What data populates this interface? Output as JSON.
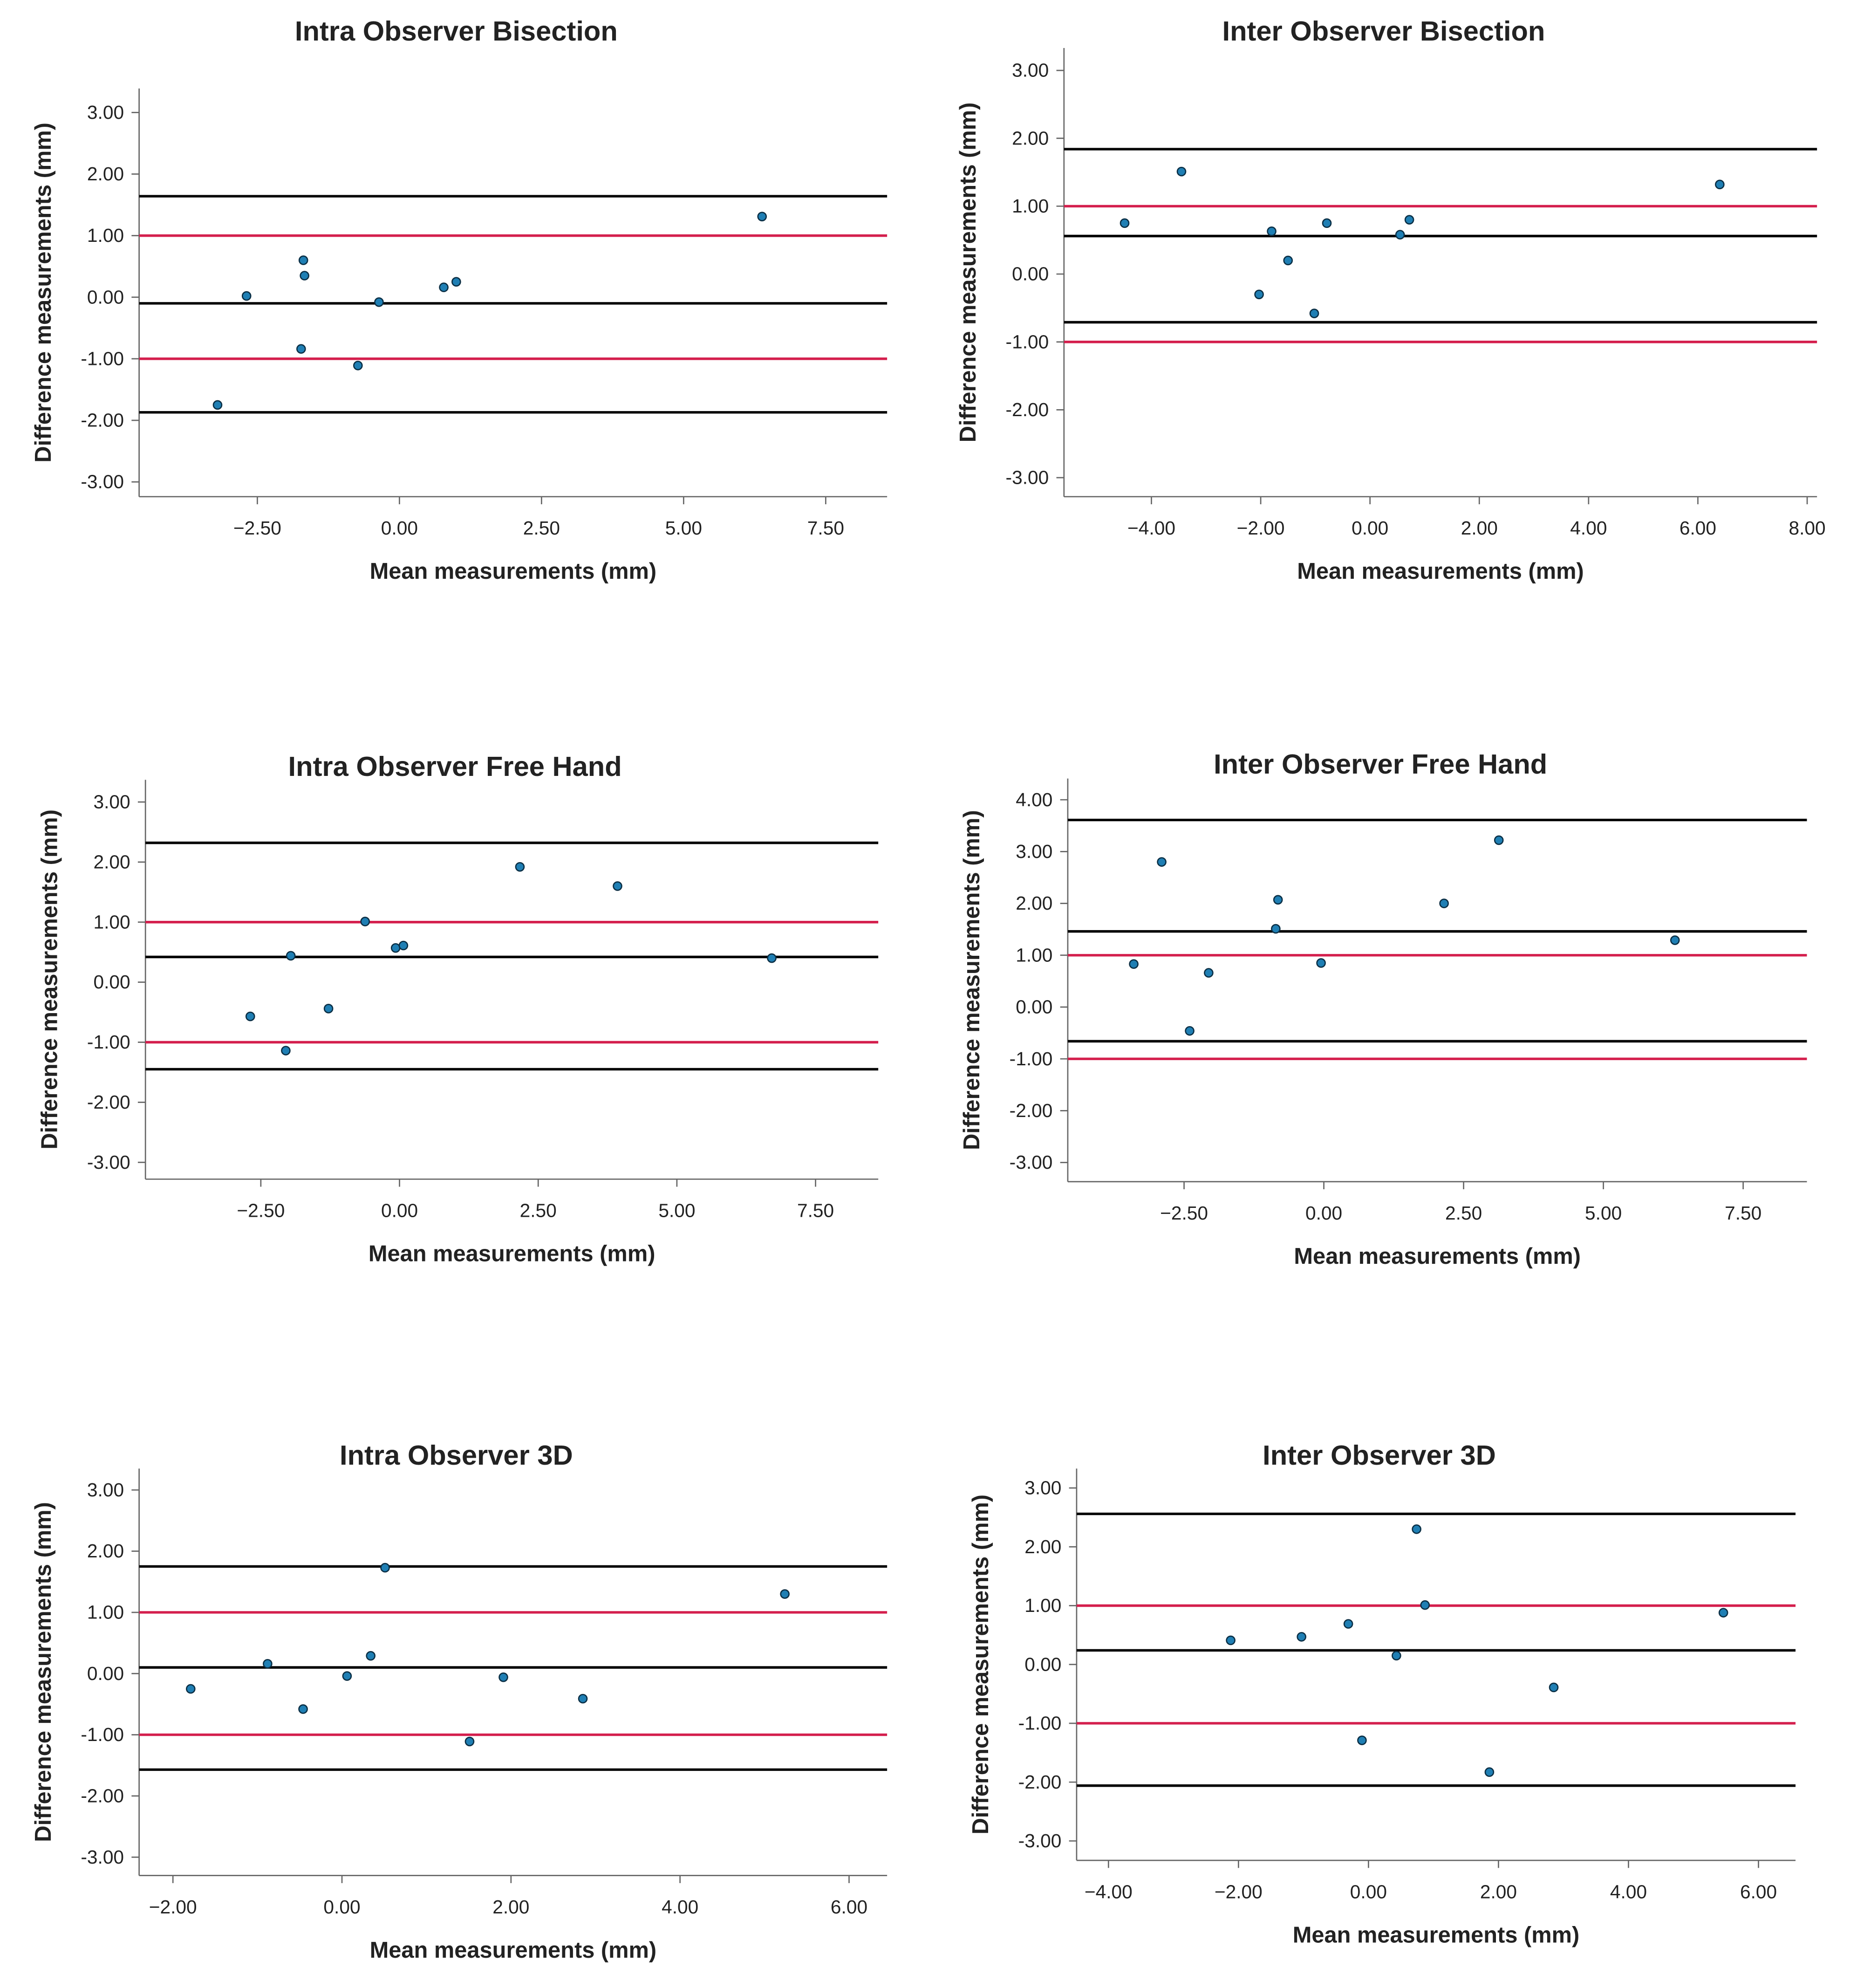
{
  "chart_data": [
    {
      "type": "scatter",
      "title": "Intra Observer Bisection",
      "x_label": "Mean measurements (mm)",
      "y_label": "Difference measurements (mm)",
      "xlim": [
        -4.58,
        8.58
      ],
      "ylim": [
        -3.24,
        3.39
      ],
      "xticks": [
        {
          "value": -2.5,
          "label": "−2.50"
        },
        {
          "value": 0,
          "label": "0.00"
        },
        {
          "value": 2.5,
          "label": "2.50"
        },
        {
          "value": 5,
          "label": "5.00"
        },
        {
          "value": 7.5,
          "label": "7.50"
        }
      ],
      "yticks": [
        {
          "value": 3,
          "label": "3.00"
        },
        {
          "value": 2,
          "label": "2.00"
        },
        {
          "value": 1,
          "label": "1.00"
        },
        {
          "value": 0,
          "label": "0.00"
        },
        {
          "value": -1,
          "label": "-1.00"
        },
        {
          "value": -2,
          "label": "-2.00"
        },
        {
          "value": -3,
          "label": "-3.00"
        }
      ],
      "color": "#1f7fb4",
      "x": [
        6.38,
        -1.69,
        -1.67,
        -2.69,
        -0.36,
        0.78,
        1.0,
        -1.73,
        -0.73,
        -3.2
      ],
      "values": [
        1.31,
        0.6,
        0.35,
        0.02,
        -0.08,
        0.16,
        0.25,
        -0.84,
        -1.11,
        -1.75
      ],
      "reference_lines": [
        {
          "value": 1.64,
          "color": "#000000"
        },
        {
          "value": 1,
          "color": "#d41f4d"
        },
        {
          "value": -0.1,
          "color": "#000000"
        },
        {
          "value": -1,
          "color": "#d41f4d"
        },
        {
          "value": -1.87,
          "color": "#000000"
        }
      ]
    },
    {
      "type": "scatter",
      "title": "Inter Observer Bisection",
      "x_label": "Mean measurements (mm)",
      "y_label": "Difference measurements (mm)",
      "xlim": [
        -5.6,
        8.18
      ],
      "ylim": [
        -3.28,
        3.33
      ],
      "xticks": [
        {
          "value": -4,
          "label": "−4.00"
        },
        {
          "value": -2,
          "label": "−2.00"
        },
        {
          "value": 0,
          "label": "0.00"
        },
        {
          "value": 2,
          "label": "2.00"
        },
        {
          "value": 4,
          "label": "4.00"
        },
        {
          "value": 6,
          "label": "6.00"
        },
        {
          "value": 8,
          "label": "8.00"
        }
      ],
      "yticks": [
        {
          "value": 3,
          "label": "3.00"
        },
        {
          "value": 2,
          "label": "2.00"
        },
        {
          "value": 1,
          "label": "1.00"
        },
        {
          "value": 0,
          "label": "0.00"
        },
        {
          "value": -1,
          "label": "-1.00"
        },
        {
          "value": -2,
          "label": "-2.00"
        },
        {
          "value": -3,
          "label": "-3.00"
        }
      ],
      "color": "#1f7fb4",
      "x": [
        -4.49,
        -3.45,
        -1.8,
        -1.5,
        -2.03,
        -0.79,
        -1.02,
        0.55,
        0.72,
        6.4
      ],
      "values": [
        0.75,
        1.51,
        0.63,
        0.2,
        -0.3,
        0.75,
        -0.58,
        0.58,
        0.8,
        1.32
      ],
      "reference_lines": [
        {
          "value": 1.84,
          "color": "#000000"
        },
        {
          "value": 1,
          "color": "#d41f4d"
        },
        {
          "value": 0.56,
          "color": "#000000"
        },
        {
          "value": -0.71,
          "color": "#000000"
        },
        {
          "value": -1,
          "color": "#d41f4d"
        }
      ]
    },
    {
      "type": "scatter",
      "title": "Intra Observer Free Hand",
      "x_label": "Mean measurements (mm)",
      "y_label": "Difference measurements (mm)",
      "xlim": [
        -4.58,
        8.63
      ],
      "ylim": [
        -3.28,
        3.37
      ],
      "xticks": [
        {
          "value": -2.5,
          "label": "−2.50"
        },
        {
          "value": 0,
          "label": "0.00"
        },
        {
          "value": 2.5,
          "label": "2.50"
        },
        {
          "value": 5,
          "label": "5.00"
        },
        {
          "value": 7.5,
          "label": "7.50"
        }
      ],
      "yticks": [
        {
          "value": 3,
          "label": "3.00"
        },
        {
          "value": 2,
          "label": "2.00"
        },
        {
          "value": 1,
          "label": "1.00"
        },
        {
          "value": 0,
          "label": "0.00"
        },
        {
          "value": -1,
          "label": "-1.00"
        },
        {
          "value": -2,
          "label": "-2.00"
        },
        {
          "value": -3,
          "label": "-3.00"
        }
      ],
      "color": "#1f7fb4",
      "x": [
        2.17,
        3.93,
        -0.62,
        -1.96,
        -0.07,
        0.07,
        6.71,
        -2.69,
        -1.28,
        -2.05
      ],
      "values": [
        1.92,
        1.6,
        1.01,
        0.44,
        0.57,
        0.61,
        0.4,
        -0.57,
        -0.44,
        -1.14
      ],
      "reference_lines": [
        {
          "value": 2.32,
          "color": "#000000"
        },
        {
          "value": 1,
          "color": "#d41f4d"
        },
        {
          "value": 0.42,
          "color": "#000000"
        },
        {
          "value": -1,
          "color": "#d41f4d"
        },
        {
          "value": -1.45,
          "color": "#000000"
        }
      ]
    },
    {
      "type": "scatter",
      "title": "Inter Observer Free Hand",
      "x_label": "Mean measurements (mm)",
      "y_label": "Difference measurements (mm)",
      "xlim": [
        -4.58,
        8.64
      ],
      "ylim": [
        -3.37,
        4.41
      ],
      "xticks": [
        {
          "value": -2.5,
          "label": "−2.50"
        },
        {
          "value": 0,
          "label": "0.00"
        },
        {
          "value": 2.5,
          "label": "2.50"
        },
        {
          "value": 5,
          "label": "5.00"
        },
        {
          "value": 7.5,
          "label": "7.50"
        }
      ],
      "yticks": [
        {
          "value": 4,
          "label": "4.00"
        },
        {
          "value": 3,
          "label": "3.00"
        },
        {
          "value": 2,
          "label": "2.00"
        },
        {
          "value": 1,
          "label": "1.00"
        },
        {
          "value": 0,
          "label": "0.00"
        },
        {
          "value": -1,
          "label": "-1.00"
        },
        {
          "value": -2,
          "label": "-2.00"
        },
        {
          "value": -3,
          "label": "-3.00"
        }
      ],
      "color": "#1f7fb4",
      "x": [
        -2.9,
        3.13,
        -0.82,
        2.15,
        -0.86,
        6.28,
        -3.4,
        -2.06,
        -0.05,
        -2.4
      ],
      "values": [
        2.8,
        3.22,
        2.07,
        2.0,
        1.51,
        1.29,
        0.83,
        0.66,
        0.85,
        -0.46
      ],
      "reference_lines": [
        {
          "value": 3.61,
          "color": "#000000"
        },
        {
          "value": 1.46,
          "color": "#000000"
        },
        {
          "value": 1,
          "color": "#d41f4d"
        },
        {
          "value": -0.66,
          "color": "#000000"
        },
        {
          "value": -1,
          "color": "#d41f4d"
        }
      ]
    },
    {
      "type": "scatter",
      "title": "Intra Observer 3D",
      "x_label": "Mean measurements (mm)",
      "y_label": "Difference measurements (mm)",
      "xlim": [
        -2.4,
        6.45
      ],
      "ylim": [
        -3.3,
        3.35
      ],
      "xticks": [
        {
          "value": -2,
          "label": "−2.00"
        },
        {
          "value": 0,
          "label": "0.00"
        },
        {
          "value": 2,
          "label": "2.00"
        },
        {
          "value": 4,
          "label": "4.00"
        },
        {
          "value": 6,
          "label": "6.00"
        }
      ],
      "yticks": [
        {
          "value": 3,
          "label": "3.00"
        },
        {
          "value": 2,
          "label": "2.00"
        },
        {
          "value": 1,
          "label": "1.00"
        },
        {
          "value": 0,
          "label": "0.00"
        },
        {
          "value": -1,
          "label": "-1.00"
        },
        {
          "value": -2,
          "label": "-2.00"
        },
        {
          "value": -3,
          "label": "-3.00"
        }
      ],
      "color": "#1f7fb4",
      "x": [
        -1.79,
        -0.88,
        -0.46,
        0.06,
        0.34,
        0.51,
        1.51,
        1.91,
        2.85,
        5.24
      ],
      "values": [
        -0.25,
        0.16,
        -0.58,
        -0.04,
        0.29,
        1.73,
        -1.11,
        -0.06,
        -0.41,
        1.3
      ],
      "reference_lines": [
        {
          "value": 1.75,
          "color": "#000000"
        },
        {
          "value": 1,
          "color": "#d41f4d"
        },
        {
          "value": 0.1,
          "color": "#000000"
        },
        {
          "value": -1,
          "color": "#d41f4d"
        },
        {
          "value": -1.57,
          "color": "#000000"
        }
      ]
    },
    {
      "type": "scatter",
      "title": "Inter Observer 3D",
      "x_label": "Mean measurements (mm)",
      "y_label": "Difference measurements (mm)",
      "xlim": [
        -4.49,
        6.57
      ],
      "ylim": [
        -3.33,
        3.33
      ],
      "xticks": [
        {
          "value": -4,
          "label": "−4.00"
        },
        {
          "value": -2,
          "label": "−2.00"
        },
        {
          "value": 0,
          "label": "0.00"
        },
        {
          "value": 2,
          "label": "2.00"
        },
        {
          "value": 4,
          "label": "4.00"
        },
        {
          "value": 6,
          "label": "6.00"
        }
      ],
      "yticks": [
        {
          "value": 3,
          "label": "3.00"
        },
        {
          "value": 2,
          "label": "2.00"
        },
        {
          "value": 1,
          "label": "1.00"
        },
        {
          "value": 0,
          "label": "0.00"
        },
        {
          "value": -1,
          "label": "-1.00"
        },
        {
          "value": -2,
          "label": "-2.00"
        },
        {
          "value": -3,
          "label": "-3.00"
        }
      ],
      "color": "#1f7fb4",
      "x": [
        -2.12,
        -1.03,
        -0.31,
        0.43,
        0.74,
        0.87,
        -0.1,
        1.86,
        2.85,
        5.46
      ],
      "values": [
        0.41,
        0.47,
        0.69,
        0.15,
        2.3,
        1.01,
        -1.29,
        -1.83,
        -0.39,
        0.88
      ],
      "reference_lines": [
        {
          "value": 2.56,
          "color": "#000000"
        },
        {
          "value": 1,
          "color": "#d41f4d"
        },
        {
          "value": 0.24,
          "color": "#000000"
        },
        {
          "value": -1,
          "color": "#d41f4d"
        },
        {
          "value": -2.06,
          "color": "#000000"
        }
      ]
    }
  ]
}
